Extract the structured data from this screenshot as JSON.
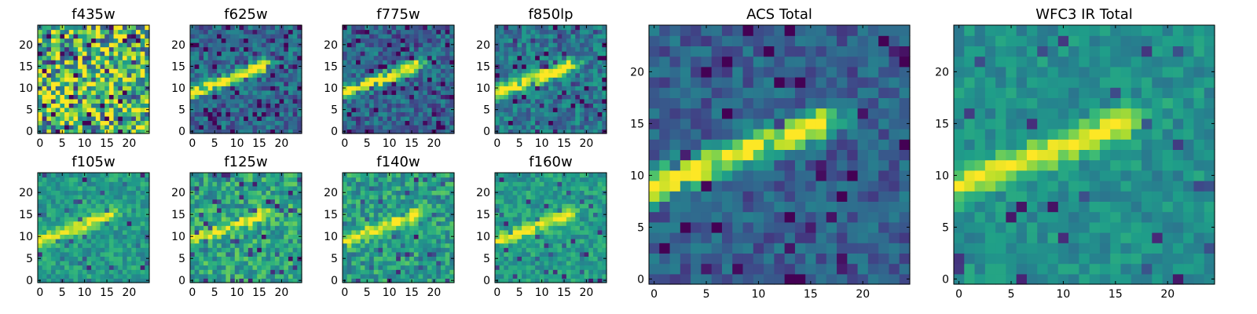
{
  "chart_data": {
    "type": "heatmap",
    "colormap": "viridis",
    "panels": [
      {
        "title": "f435w",
        "grid": 25,
        "seed": 11,
        "noise": 1.0,
        "base": 0.72,
        "feature": 0.0,
        "dark": 0.25,
        "xticks": [
          "0",
          "5",
          "10",
          "15",
          "20"
        ],
        "yticks": [
          "0",
          "5",
          "10",
          "15",
          "20"
        ]
      },
      {
        "title": "f625w",
        "grid": 25,
        "seed": 23,
        "noise": 0.35,
        "base": 0.35,
        "feature": 0.75,
        "dark": 0.1,
        "xticks": [
          "0",
          "5",
          "10",
          "15",
          "20"
        ],
        "yticks": [
          "0",
          "5",
          "10",
          "15",
          "20"
        ]
      },
      {
        "title": "f775w",
        "grid": 25,
        "seed": 37,
        "noise": 0.35,
        "base": 0.33,
        "feature": 0.78,
        "dark": 0.12,
        "xticks": [
          "0",
          "5",
          "10",
          "15",
          "20"
        ],
        "yticks": [
          "0",
          "5",
          "10",
          "15",
          "20"
        ]
      },
      {
        "title": "f850lp",
        "grid": 25,
        "seed": 41,
        "noise": 0.35,
        "base": 0.4,
        "feature": 0.72,
        "dark": 0.1,
        "xticks": [
          "0",
          "5",
          "10",
          "15",
          "20"
        ],
        "yticks": [
          "0",
          "5",
          "10",
          "15",
          "20"
        ]
      },
      {
        "title": "f105w",
        "grid": 25,
        "seed": 53,
        "noise": 0.28,
        "base": 0.55,
        "feature": 0.45,
        "dark": 0.06,
        "xticks": [
          "0",
          "5",
          "10",
          "15",
          "20"
        ],
        "yticks": [
          "0",
          "5",
          "10",
          "15",
          "20"
        ]
      },
      {
        "title": "f125w",
        "grid": 25,
        "seed": 67,
        "noise": 0.4,
        "base": 0.58,
        "feature": 0.4,
        "dark": 0.06,
        "xticks": [
          "0",
          "5",
          "10",
          "15",
          "20"
        ],
        "yticks": [
          "0",
          "5",
          "10",
          "15",
          "20"
        ]
      },
      {
        "title": "f140w",
        "grid": 25,
        "seed": 79,
        "noise": 0.38,
        "base": 0.55,
        "feature": 0.45,
        "dark": 0.06,
        "xticks": [
          "0",
          "5",
          "10",
          "15",
          "20"
        ],
        "yticks": [
          "0",
          "5",
          "10",
          "15",
          "20"
        ]
      },
      {
        "title": "f160w",
        "grid": 25,
        "seed": 83,
        "noise": 0.28,
        "base": 0.55,
        "feature": 0.45,
        "dark": 0.06,
        "xticks": [
          "0",
          "5",
          "10",
          "15",
          "20"
        ],
        "yticks": [
          "0",
          "5",
          "10",
          "15",
          "20"
        ]
      },
      {
        "title": "ACS Total",
        "grid": 25,
        "seed": 97,
        "noise": 0.28,
        "base": 0.3,
        "feature": 0.75,
        "dark": 0.06,
        "xticks": [
          "0",
          "5",
          "10",
          "15",
          "20"
        ],
        "yticks": [
          "0",
          "5",
          "10",
          "15",
          "20"
        ]
      },
      {
        "title": "WFC3 IR Total",
        "grid": 25,
        "seed": 101,
        "noise": 0.22,
        "base": 0.5,
        "feature": 0.5,
        "dark": 0.04,
        "xticks": [
          "0",
          "5",
          "10",
          "15",
          "20"
        ],
        "yticks": [
          "0",
          "5",
          "10",
          "15",
          "20"
        ]
      }
    ],
    "xlim": [
      0,
      25
    ],
    "ylim": [
      0,
      25
    ],
    "grid": false,
    "legend": false
  }
}
